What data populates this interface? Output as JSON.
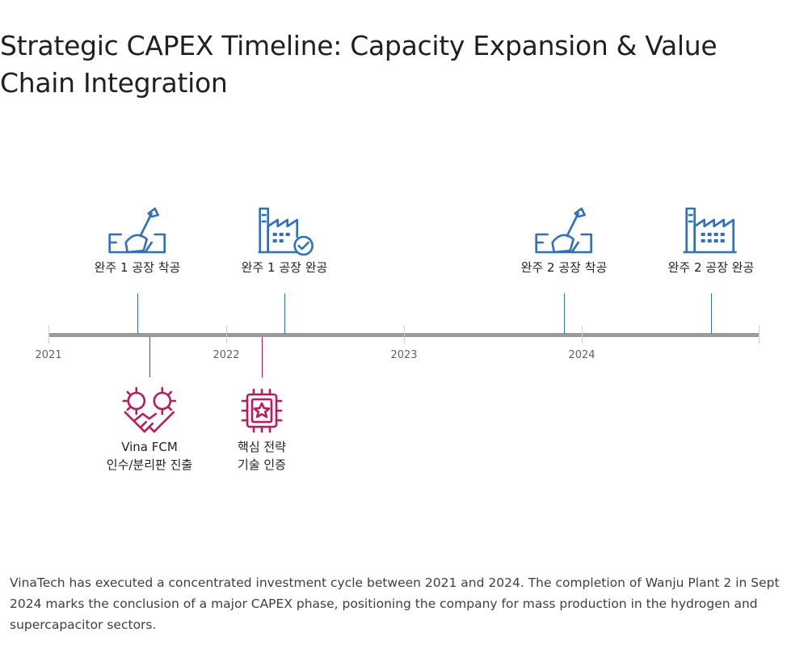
{
  "title": "Strategic CAPEX Timeline: Capacity Expansion & Value Chain Integration",
  "timeline": {
    "years": [
      "2021",
      "2022",
      "2023",
      "2024"
    ],
    "above_events": [
      {
        "label": "완주 1 공장 착공",
        "icon": "construction-shovel-icon"
      },
      {
        "label": "완주 1 공장 완공",
        "icon": "factory-check-icon"
      },
      {
        "label": "완주 2 공장 착공",
        "icon": "construction-shovel-icon"
      },
      {
        "label": "완주 2 공장 완공",
        "icon": "factory-icon"
      }
    ],
    "below_events": [
      {
        "label_line1": "Vina FCM",
        "label_line2": "인수/분리판 진출",
        "icon": "handshake-gears-icon"
      },
      {
        "label_line1": "핵심 전략",
        "label_line2": "기술 인증",
        "icon": "chip-star-icon"
      }
    ],
    "colors": {
      "capacity": "#2f6fbf",
      "value_chain": "#c2185b",
      "axis": "#9a9a9a"
    }
  },
  "description": "VinaTech has executed a concentrated investment cycle between 2021 and 2024. The completion of Wanju Plant 2 in Sept 2024 marks the conclusion of a major CAPEX phase, positioning the company for mass production in the hydrogen and supercapacitor sectors."
}
